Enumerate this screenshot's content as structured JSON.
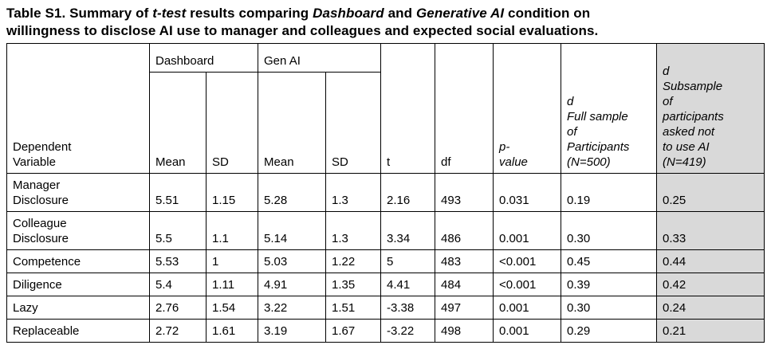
{
  "title": {
    "segments": [
      {
        "text": "Table S1. Summary of ",
        "italic": false
      },
      {
        "text": "t-test",
        "italic": true
      },
      {
        "text": " results comparing ",
        "italic": false
      },
      {
        "text": "Dashboard",
        "italic": true
      },
      {
        "text": " and ",
        "italic": false
      },
      {
        "text": "Generative AI",
        "italic": true
      },
      {
        "text": " condition on\nwillingness to disclose AI use to manager and colleagues and expected social evaluations.",
        "italic": false
      }
    ]
  },
  "colors": {
    "shaded_column_background": "#d9d9d9",
    "border": "#000000",
    "text": "#000000",
    "page_background": "#ffffff"
  },
  "table": {
    "header": {
      "dependent_variable": "Dependent\nVariable",
      "dashboard_group": "Dashboard",
      "genai_group": "Gen AI",
      "dashboard_mean": "Mean",
      "dashboard_sd": "SD",
      "genai_mean": "Mean",
      "genai_sd": "SD",
      "t": "t",
      "df": "df",
      "p_value": "p-\nvalue",
      "d_full_sample": "d\nFull sample\nof\nParticipants\n(N=500)",
      "d_subsample": "d\nSubsample\nof\nparticipants\nasked not\nto use AI\n(N=419)"
    },
    "rows": [
      {
        "variable": "Manager\nDisclosure",
        "dashboard_mean": "5.51",
        "dashboard_sd": "1.15",
        "genai_mean": "5.28",
        "genai_sd": "1.3",
        "t": "2.16",
        "df": "493",
        "p_value": "0.031",
        "d_full_sample": "0.19",
        "d_subsample": "0.25"
      },
      {
        "variable": "Colleague\nDisclosure",
        "dashboard_mean": "5.5",
        "dashboard_sd": "1.1",
        "genai_mean": "5.14",
        "genai_sd": "1.3",
        "t": "3.34",
        "df": "486",
        "p_value": "0.001",
        "d_full_sample": "0.30",
        "d_subsample": "0.33"
      },
      {
        "variable": "Competence",
        "dashboard_mean": "5.53",
        "dashboard_sd": "1",
        "genai_mean": "5.03",
        "genai_sd": "1.22",
        "t": "5",
        "df": "483",
        "p_value": "<0.001",
        "d_full_sample": "0.45",
        "d_subsample": "0.44"
      },
      {
        "variable": "Diligence",
        "dashboard_mean": "5.4",
        "dashboard_sd": "1.11",
        "genai_mean": "4.91",
        "genai_sd": "1.35",
        "t": "4.41",
        "df": "484",
        "p_value": "<0.001",
        "d_full_sample": "0.39",
        "d_subsample": "0.42"
      },
      {
        "variable": "Lazy",
        "dashboard_mean": "2.76",
        "dashboard_sd": "1.54",
        "genai_mean": "3.22",
        "genai_sd": "1.51",
        "t": "-3.38",
        "df": "497",
        "p_value": "0.001",
        "d_full_sample": "0.30",
        "d_subsample": "0.24"
      },
      {
        "variable": "Replaceable",
        "dashboard_mean": "2.72",
        "dashboard_sd": "1.61",
        "genai_mean": "3.19",
        "genai_sd": "1.67",
        "t": "-3.22",
        "df": "498",
        "p_value": "0.001",
        "d_full_sample": "0.29",
        "d_subsample": "0.21"
      }
    ]
  }
}
